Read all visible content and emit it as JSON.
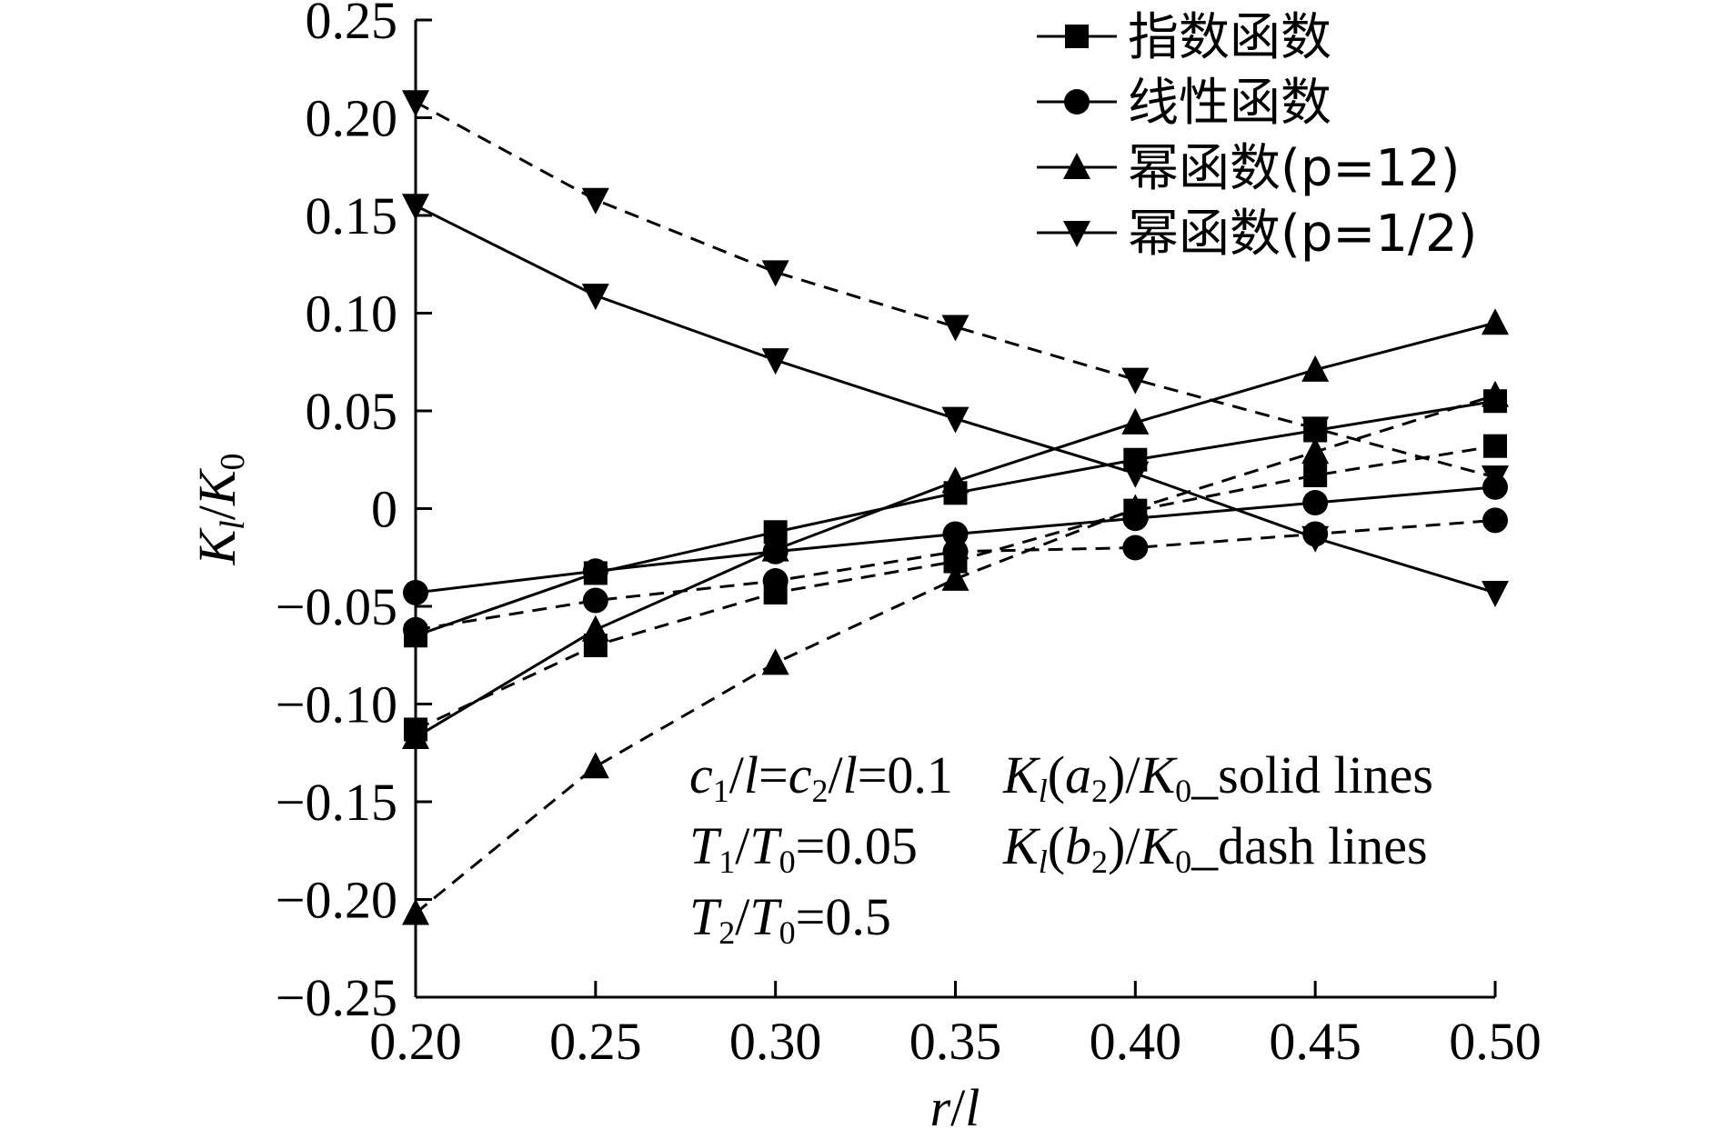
{
  "chart_data": {
    "type": "line",
    "xlabel": "r/l",
    "ylabel": "K_l/K_0",
    "xlim": [
      0.2,
      0.5
    ],
    "ylim": [
      -0.25,
      0.25
    ],
    "x_ticks": [
      "0.20",
      "0.25",
      "0.30",
      "0.35",
      "0.40",
      "0.45",
      "0.50"
    ],
    "y_ticks": [
      "0.25",
      "0.20",
      "0.15",
      "0.10",
      "0.05",
      "0",
      "−0.05",
      "−0.10",
      "−0.15",
      "−0.20",
      "−0.25"
    ],
    "x": [
      0.2,
      0.25,
      0.3,
      0.35,
      0.4,
      0.45,
      0.5
    ],
    "legend": [
      {
        "label": "指数函数",
        "marker": "square"
      },
      {
        "label": "线性函数",
        "marker": "circle"
      },
      {
        "label": "幂函数(p=12)",
        "marker": "triangle-up"
      },
      {
        "label": "幂函数(p=1/2)",
        "marker": "triangle-down"
      }
    ],
    "series": [
      {
        "name": "指数函数 K_l(a2)/K0",
        "marker": "square",
        "style": "solid",
        "values": [
          -0.065,
          -0.033,
          -0.012,
          0.008,
          0.025,
          0.04,
          0.055
        ]
      },
      {
        "name": "指数函数 K_l(b2)/K0",
        "marker": "square",
        "style": "dashed",
        "values": [
          -0.113,
          -0.07,
          -0.043,
          -0.027,
          -0.001,
          0.017,
          0.032
        ]
      },
      {
        "name": "线性函数 K_l(a2)/K0",
        "marker": "circle",
        "style": "solid",
        "values": [
          -0.043,
          -0.032,
          -0.022,
          -0.013,
          -0.005,
          0.003,
          0.011
        ]
      },
      {
        "name": "线性函数 K_l(b2)/K0",
        "marker": "circle",
        "style": "dashed",
        "values": [
          -0.062,
          -0.047,
          -0.037,
          -0.022,
          -0.02,
          -0.013,
          -0.006
        ]
      },
      {
        "name": "幂函数(p=12) K_l(a2)/K0",
        "marker": "triangle-up",
        "style": "solid",
        "values": [
          -0.117,
          -0.062,
          -0.021,
          0.014,
          0.044,
          0.071,
          0.095
        ]
      },
      {
        "name": "幂函数(p=12) K_l(b2)/K0",
        "marker": "triangle-up",
        "style": "dashed",
        "values": [
          -0.207,
          -0.132,
          -0.079,
          -0.036,
          0.0,
          0.029,
          0.058
        ]
      },
      {
        "name": "幂函数(p=1/2) K_l(a2)/K0",
        "marker": "triangle-down",
        "style": "solid",
        "values": [
          0.155,
          0.109,
          0.076,
          0.046,
          0.018,
          -0.015,
          -0.043
        ]
      },
      {
        "name": "幂函数(p=1/2) K_l(b2)/K0",
        "marker": "triangle-down",
        "style": "dashed",
        "values": [
          0.208,
          0.158,
          0.121,
          0.093,
          0.066,
          0.041,
          0.016
        ]
      }
    ],
    "annotations": {
      "c_ratio": {
        "c1": "c",
        "sub1": "1",
        "l1": "/",
        "lvar1": "l",
        "eq1": "=",
        "c2": "c",
        "sub2": "2",
        "l2": "/",
        "lvar2": "l",
        "val": "=0.1"
      },
      "t1_ratio": {
        "t": "T",
        "sub": "1",
        "slash": "/",
        "t0": "T",
        "sub0": "0",
        "val": "=0.05"
      },
      "t2_ratio": {
        "t": "T",
        "sub": "2",
        "slash": "/",
        "t0": "T",
        "sub0": "0",
        "val": "=0.5"
      },
      "solid_note": {
        "k": "K",
        "ksub": "l",
        "open": "(",
        "a": "a",
        "asub": "2",
        "close": ")/",
        "k0": "K",
        "k0sub": "0",
        "tail": "_solid lines"
      },
      "dash_note": {
        "k": "K",
        "ksub": "l",
        "open": "(",
        "b": "b",
        "bsub": "2",
        "close": ")/",
        "k0": "K",
        "k0sub": "0",
        "tail": "_dash lines"
      }
    }
  },
  "axes": {
    "x_label_r": "r",
    "x_label_slash": "/",
    "x_label_l": "l",
    "y_label_k": "K",
    "y_label_sub": "l",
    "y_label_slash": "/",
    "y_label_k0": "K",
    "y_label_sub0": "0"
  }
}
